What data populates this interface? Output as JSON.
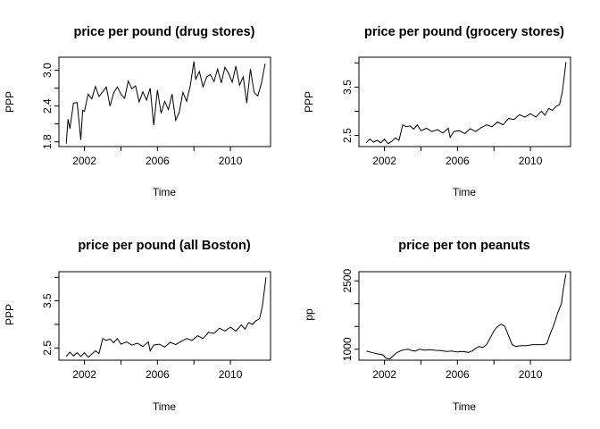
{
  "chart_data": [
    {
      "type": "line",
      "title": "price per pound (drug stores)",
      "xlabel": "Time",
      "ylabel": "PPP",
      "xlim": [
        2000.6,
        2012.2
      ],
      "ylim": [
        1.72,
        3.22
      ],
      "xticks": [
        2002,
        2006,
        2010
      ],
      "xtick_labels": [
        "2002",
        "2006",
        "2010"
      ],
      "yticks": [
        1.8,
        2.4,
        3.0
      ],
      "ytick_labels": [
        "1.8",
        "2.4",
        "3.0"
      ],
      "yticks_minor": [
        2.1,
        2.7
      ],
      "x": [
        2001.0,
        2001.1,
        2001.2,
        2001.4,
        2001.6,
        2001.8,
        2001.9,
        2002.0,
        2002.2,
        2002.4,
        2002.6,
        2002.8,
        2003.0,
        2003.2,
        2003.4,
        2003.6,
        2003.8,
        2004.0,
        2004.2,
        2004.4,
        2004.6,
        2004.8,
        2005.0,
        2005.2,
        2005.4,
        2005.6,
        2005.8,
        2006.0,
        2006.2,
        2006.4,
        2006.6,
        2006.8,
        2007.0,
        2007.2,
        2007.4,
        2007.6,
        2007.8,
        2008.0,
        2008.1,
        2008.3,
        2008.5,
        2008.7,
        2008.9,
        2009.1,
        2009.3,
        2009.5,
        2009.7,
        2009.9,
        2010.1,
        2010.3,
        2010.5,
        2010.7,
        2010.9,
        2011.1,
        2011.3,
        2011.5,
        2011.7,
        2011.9
      ],
      "values": [
        1.77,
        2.18,
        2.02,
        2.45,
        2.46,
        1.83,
        2.33,
        2.31,
        2.6,
        2.52,
        2.73,
        2.56,
        2.64,
        2.72,
        2.4,
        2.62,
        2.72,
        2.6,
        2.53,
        2.82,
        2.69,
        2.74,
        2.47,
        2.64,
        2.5,
        2.7,
        2.08,
        2.67,
        2.28,
        2.48,
        2.34,
        2.6,
        2.16,
        2.3,
        2.63,
        2.48,
        2.74,
        3.15,
        2.85,
        2.98,
        2.72,
        2.89,
        2.93,
        2.81,
        3.02,
        2.79,
        3.05,
        2.95,
        2.8,
        3.07,
        2.75,
        2.89,
        2.45,
        3.02,
        2.63,
        2.57,
        2.78,
        3.11
      ]
    },
    {
      "type": "line",
      "title": "price per pound (grocery stores)",
      "xlabel": "Time",
      "ylabel": "PPP",
      "xlim": [
        2000.6,
        2012.2
      ],
      "ylim": [
        2.27,
        4.12
      ],
      "xticks": [
        2002,
        2006,
        2010
      ],
      "xtick_labels": [
        "2002",
        "2006",
        "2010"
      ],
      "yticks": [
        2.5,
        3.5
      ],
      "ytick_labels": [
        "2.5",
        "3.5"
      ],
      "yticks_minor": [
        3.0,
        4.0
      ],
      "x": [
        2001.0,
        2001.2,
        2001.4,
        2001.6,
        2001.8,
        2002.0,
        2002.2,
        2002.4,
        2002.6,
        2002.8,
        2003.0,
        2003.2,
        2003.4,
        2003.6,
        2003.8,
        2004.0,
        2004.3,
        2004.6,
        2004.9,
        2005.2,
        2005.5,
        2005.6,
        2005.8,
        2006.1,
        2006.4,
        2006.7,
        2007.0,
        2007.3,
        2007.6,
        2007.9,
        2008.2,
        2008.5,
        2008.8,
        2009.1,
        2009.4,
        2009.7,
        2010.0,
        2010.3,
        2010.6,
        2010.8,
        2011.0,
        2011.2,
        2011.4,
        2011.6,
        2011.75,
        2011.85,
        2011.95
      ],
      "values": [
        2.35,
        2.43,
        2.36,
        2.4,
        2.35,
        2.42,
        2.33,
        2.38,
        2.45,
        2.4,
        2.72,
        2.68,
        2.7,
        2.63,
        2.72,
        2.6,
        2.65,
        2.58,
        2.62,
        2.55,
        2.65,
        2.46,
        2.58,
        2.6,
        2.54,
        2.64,
        2.58,
        2.66,
        2.72,
        2.68,
        2.78,
        2.72,
        2.85,
        2.83,
        2.93,
        2.88,
        2.95,
        2.88,
        3.0,
        2.92,
        3.06,
        3.02,
        3.1,
        3.14,
        3.4,
        3.7,
        4.02
      ]
    },
    {
      "type": "line",
      "title": "price per pound (all Boston)",
      "xlabel": "Time",
      "ylabel": "PPP",
      "xlim": [
        2000.6,
        2012.2
      ],
      "ylim": [
        2.24,
        4.12
      ],
      "xticks": [
        2002,
        2006,
        2010
      ],
      "xtick_labels": [
        "2002",
        "2006",
        "2010"
      ],
      "yticks": [
        2.5,
        3.5
      ],
      "ytick_labels": [
        "2.5",
        "3.5"
      ],
      "yticks_minor": [
        3.0,
        4.0
      ],
      "x": [
        2001.0,
        2001.2,
        2001.4,
        2001.6,
        2001.8,
        2002.0,
        2002.2,
        2002.4,
        2002.6,
        2002.8,
        2003.0,
        2003.2,
        2003.4,
        2003.6,
        2003.8,
        2004.0,
        2004.3,
        2004.6,
        2004.9,
        2005.2,
        2005.5,
        2005.6,
        2005.8,
        2006.1,
        2006.4,
        2006.7,
        2007.0,
        2007.3,
        2007.6,
        2007.9,
        2008.2,
        2008.5,
        2008.8,
        2009.1,
        2009.4,
        2009.7,
        2010.0,
        2010.3,
        2010.6,
        2010.8,
        2011.0,
        2011.2,
        2011.4,
        2011.6,
        2011.75,
        2011.85,
        2011.95
      ],
      "values": [
        2.32,
        2.41,
        2.33,
        2.4,
        2.32,
        2.4,
        2.3,
        2.37,
        2.44,
        2.38,
        2.7,
        2.66,
        2.69,
        2.61,
        2.7,
        2.58,
        2.63,
        2.56,
        2.6,
        2.53,
        2.63,
        2.44,
        2.56,
        2.58,
        2.52,
        2.62,
        2.57,
        2.64,
        2.7,
        2.66,
        2.76,
        2.7,
        2.83,
        2.81,
        2.92,
        2.86,
        2.94,
        2.86,
        2.99,
        2.9,
        3.04,
        3.0,
        3.08,
        3.12,
        3.38,
        3.68,
        4.0
      ]
    },
    {
      "type": "line",
      "title": "price per ton peanuts",
      "xlabel": "Time",
      "ylabel": "pp",
      "xlim": [
        2000.6,
        2012.2
      ],
      "ylim": [
        760,
        2700
      ],
      "xticks": [
        2002,
        2006,
        2010
      ],
      "xtick_labels": [
        "2002",
        "2006",
        "2010"
      ],
      "yticks": [
        1000,
        2500
      ],
      "ytick_labels": [
        "1000",
        "2500"
      ],
      "yticks_minor": [
        1500,
        2000
      ],
      "x": [
        2001.0,
        2001.3,
        2001.6,
        2001.9,
        2002.1,
        2002.3,
        2002.5,
        2002.7,
        2002.9,
        2003.1,
        2003.3,
        2003.5,
        2003.7,
        2003.9,
        2004.2,
        2004.5,
        2004.8,
        2005.1,
        2005.4,
        2005.7,
        2006.0,
        2006.3,
        2006.6,
        2006.8,
        2007.0,
        2007.2,
        2007.4,
        2007.6,
        2007.8,
        2008.0,
        2008.2,
        2008.4,
        2008.6,
        2008.8,
        2009.0,
        2009.2,
        2009.5,
        2009.8,
        2010.1,
        2010.4,
        2010.7,
        2010.9,
        2011.1,
        2011.3,
        2011.5,
        2011.7,
        2011.8,
        2011.9,
        2011.95
      ],
      "values": [
        960,
        930,
        900,
        880,
        800,
        790,
        860,
        930,
        970,
        990,
        1000,
        970,
        960,
        1000,
        980,
        990,
        975,
        970,
        950,
        960,
        940,
        950,
        930,
        960,
        1020,
        1060,
        1040,
        1100,
        1250,
        1400,
        1500,
        1550,
        1500,
        1300,
        1100,
        1060,
        1080,
        1080,
        1100,
        1100,
        1100,
        1120,
        1350,
        1550,
        1800,
        2000,
        2300,
        2550,
        2650
      ]
    }
  ]
}
